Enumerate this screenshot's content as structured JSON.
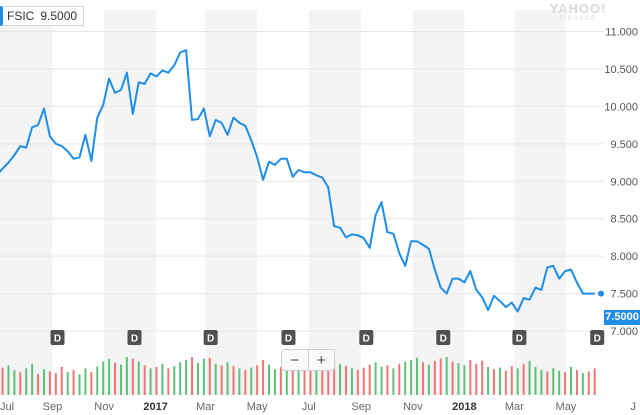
{
  "legend": {
    "symbol": "FSIC",
    "value": "9.5000"
  },
  "watermark": {
    "line1": "YAHOO!",
    "line2": "FINANCE"
  },
  "zoom": {
    "minus": "−",
    "plus": "+"
  },
  "last_price_label": "7.5000",
  "colors": {
    "price_line": "#1e8ee8",
    "volume_up": "#5cbf7a",
    "volume_down": "#f27575",
    "band": "#f4f4f4",
    "dividend_marker": "#505050"
  },
  "chart_data": {
    "type": "line",
    "y_axis": {
      "min": 6.6,
      "max": 11.1,
      "ticks": [
        "11.000",
        "10.500",
        "10.000",
        "9.500",
        "9.000",
        "8.500",
        "8.000",
        "7.500",
        "7.000"
      ]
    },
    "x_axis": {
      "range": [
        "2016-07-01",
        "2018-06-15"
      ],
      "ticks": [
        {
          "label": "Jul",
          "date": "2016-07-01"
        },
        {
          "label": "Sep",
          "date": "2016-09-01"
        },
        {
          "label": "Nov",
          "date": "2016-11-01"
        },
        {
          "label": "2017",
          "date": "2017-01-01"
        },
        {
          "label": "Mar",
          "date": "2017-03-01"
        },
        {
          "label": "May",
          "date": "2017-05-01"
        },
        {
          "label": "Jul",
          "date": "2017-07-01"
        },
        {
          "label": "Sep",
          "date": "2017-09-01"
        },
        {
          "label": "Nov",
          "date": "2017-11-01"
        },
        {
          "label": "2018",
          "date": "2018-01-01"
        },
        {
          "label": "Mar",
          "date": "2018-03-01"
        },
        {
          "label": "May",
          "date": "2018-05-01"
        },
        {
          "label": "J",
          "date": "2018-06-15"
        }
      ],
      "bands": [
        [
          "2016-07-01",
          "2016-09-01"
        ],
        [
          "2016-11-01",
          "2017-01-01"
        ],
        [
          "2017-03-01",
          "2017-05-01"
        ],
        [
          "2017-07-01",
          "2017-09-01"
        ],
        [
          "2017-11-01",
          "2018-01-01"
        ],
        [
          "2018-03-01",
          "2018-05-01"
        ]
      ]
    },
    "series": [
      {
        "x": [
          "2016-06-30",
          "2016-07-11",
          "2016-07-18",
          "2016-07-25",
          "2016-08-01",
          "2016-08-08",
          "2016-08-15",
          "2016-08-22",
          "2016-08-29",
          "2016-09-05",
          "2016-09-12",
          "2016-09-19",
          "2016-09-26",
          "2016-10-03",
          "2016-10-10",
          "2016-10-17",
          "2016-10-24",
          "2016-10-31",
          "2016-11-07",
          "2016-11-14",
          "2016-11-21",
          "2016-11-28",
          "2016-12-05",
          "2016-12-12",
          "2016-12-19",
          "2016-12-26",
          "2017-01-02",
          "2017-01-09",
          "2017-01-16",
          "2017-01-23",
          "2017-01-30",
          "2017-02-06",
          "2017-02-13",
          "2017-02-20",
          "2017-02-27",
          "2017-03-06",
          "2017-03-13",
          "2017-03-20",
          "2017-03-27",
          "2017-04-03",
          "2017-04-10",
          "2017-04-17",
          "2017-04-24",
          "2017-05-01",
          "2017-05-08",
          "2017-05-15",
          "2017-05-22",
          "2017-05-29",
          "2017-06-05",
          "2017-06-12",
          "2017-06-19",
          "2017-06-26",
          "2017-07-03",
          "2017-07-10",
          "2017-07-17",
          "2017-07-24",
          "2017-07-31",
          "2017-08-07",
          "2017-08-14",
          "2017-08-21",
          "2017-08-28",
          "2017-09-04",
          "2017-09-11",
          "2017-09-18",
          "2017-09-25",
          "2017-10-02",
          "2017-10-09",
          "2017-10-16",
          "2017-10-23",
          "2017-10-30",
          "2017-11-06",
          "2017-11-13",
          "2017-11-20",
          "2017-11-27",
          "2017-12-04",
          "2017-12-11",
          "2017-12-18",
          "2017-12-25",
          "2018-01-01",
          "2018-01-08",
          "2018-01-15",
          "2018-01-22",
          "2018-01-29",
          "2018-02-05",
          "2018-02-12",
          "2018-02-19",
          "2018-02-26",
          "2018-03-05",
          "2018-03-12",
          "2018-03-19",
          "2018-03-26",
          "2018-04-02",
          "2018-04-09",
          "2018-04-16",
          "2018-04-23",
          "2018-04-30",
          "2018-05-07",
          "2018-05-14",
          "2018-05-21",
          "2018-05-28",
          "2018-06-04"
        ],
        "values": [
          9.12,
          9.25,
          9.35,
          9.47,
          9.45,
          9.72,
          9.75,
          9.97,
          9.6,
          9.5,
          9.47,
          9.4,
          9.3,
          9.32,
          9.62,
          9.27,
          9.85,
          10.02,
          10.37,
          10.18,
          10.22,
          10.45,
          9.9,
          10.32,
          10.3,
          10.44,
          10.4,
          10.48,
          10.45,
          10.55,
          10.72,
          10.75,
          9.82,
          9.83,
          9.97,
          9.6,
          9.82,
          9.78,
          9.62,
          9.85,
          9.78,
          9.74,
          9.55,
          9.32,
          9.02,
          9.26,
          9.22,
          9.3,
          9.3,
          9.06,
          9.15,
          9.12,
          9.12,
          9.08,
          9.05,
          8.92,
          8.4,
          8.38,
          8.25,
          8.29,
          8.28,
          8.24,
          8.11,
          8.55,
          8.72,
          8.32,
          8.3,
          8.04,
          7.87,
          8.2,
          8.2,
          8.15,
          8.1,
          7.82,
          7.58,
          7.5,
          7.7,
          7.7,
          7.65,
          7.8,
          7.55,
          7.45,
          7.28,
          7.47,
          7.4,
          7.32,
          7.38,
          7.26,
          7.44,
          7.42,
          7.58,
          7.55,
          7.85,
          7.87,
          7.7,
          7.8,
          7.82,
          7.65,
          7.5,
          7.5,
          7.5
        ]
      }
    ],
    "volume": [
      {
        "x": "2016-07-04",
        "dir": "down",
        "rel": 0.72
      },
      {
        "x": "2016-07-11",
        "dir": "up",
        "rel": 0.78
      },
      {
        "x": "2016-07-18",
        "dir": "up",
        "rel": 0.65
      },
      {
        "x": "2016-07-25",
        "dir": "down",
        "rel": 0.6
      },
      {
        "x": "2016-08-01",
        "dir": "up",
        "rel": 0.7
      },
      {
        "x": "2016-08-08",
        "dir": "up",
        "rel": 0.82
      },
      {
        "x": "2016-08-15",
        "dir": "down",
        "rel": 0.55
      },
      {
        "x": "2016-08-22",
        "dir": "up",
        "rel": 0.68
      },
      {
        "x": "2016-08-29",
        "dir": "down",
        "rel": 0.62
      },
      {
        "x": "2016-09-05",
        "dir": "down",
        "rel": 0.58
      },
      {
        "x": "2016-09-12",
        "dir": "down",
        "rel": 0.74
      },
      {
        "x": "2016-09-19",
        "dir": "up",
        "rel": 0.6
      },
      {
        "x": "2016-09-26",
        "dir": "down",
        "rel": 0.66
      },
      {
        "x": "2016-10-03",
        "dir": "up",
        "rel": 0.54
      },
      {
        "x": "2016-10-10",
        "dir": "up",
        "rel": 0.7
      },
      {
        "x": "2016-10-17",
        "dir": "down",
        "rel": 0.6
      },
      {
        "x": "2016-10-24",
        "dir": "up",
        "rel": 0.75
      },
      {
        "x": "2016-10-31",
        "dir": "up",
        "rel": 0.88
      },
      {
        "x": "2016-11-07",
        "dir": "up",
        "rel": 0.95
      },
      {
        "x": "2016-11-14",
        "dir": "down",
        "rel": 0.85
      },
      {
        "x": "2016-11-21",
        "dir": "up",
        "rel": 0.8
      },
      {
        "x": "2016-11-28",
        "dir": "up",
        "rel": 1.0
      },
      {
        "x": "2016-12-05",
        "dir": "down",
        "rel": 0.96
      },
      {
        "x": "2016-12-12",
        "dir": "up",
        "rel": 0.88
      },
      {
        "x": "2016-12-19",
        "dir": "down",
        "rel": 0.78
      },
      {
        "x": "2016-12-26",
        "dir": "up",
        "rel": 0.7
      },
      {
        "x": "2017-01-02",
        "dir": "down",
        "rel": 0.74
      },
      {
        "x": "2017-01-09",
        "dir": "up",
        "rel": 0.82
      },
      {
        "x": "2017-01-16",
        "dir": "down",
        "rel": 0.7
      },
      {
        "x": "2017-01-23",
        "dir": "up",
        "rel": 0.76
      },
      {
        "x": "2017-01-30",
        "dir": "up",
        "rel": 0.86
      },
      {
        "x": "2017-02-06",
        "dir": "up",
        "rel": 0.92
      },
      {
        "x": "2017-02-13",
        "dir": "down",
        "rel": 1.0
      },
      {
        "x": "2017-02-20",
        "dir": "up",
        "rel": 0.84
      },
      {
        "x": "2017-02-27",
        "dir": "up",
        "rel": 0.96
      },
      {
        "x": "2017-03-06",
        "dir": "down",
        "rel": 0.98
      },
      {
        "x": "2017-03-13",
        "dir": "up",
        "rel": 0.82
      },
      {
        "x": "2017-03-20",
        "dir": "down",
        "rel": 0.78
      },
      {
        "x": "2017-03-27",
        "dir": "up",
        "rel": 0.86
      },
      {
        "x": "2017-04-03",
        "dir": "down",
        "rel": 0.76
      },
      {
        "x": "2017-04-10",
        "dir": "up",
        "rel": 0.7
      },
      {
        "x": "2017-04-17",
        "dir": "down",
        "rel": 0.66
      },
      {
        "x": "2017-04-24",
        "dir": "up",
        "rel": 0.72
      },
      {
        "x": "2017-05-01",
        "dir": "down",
        "rel": 0.78
      },
      {
        "x": "2017-05-08",
        "dir": "down",
        "rel": 0.92
      },
      {
        "x": "2017-05-15",
        "dir": "up",
        "rel": 0.8
      },
      {
        "x": "2017-05-22",
        "dir": "up",
        "rel": 0.68
      },
      {
        "x": "2017-05-29",
        "dir": "down",
        "rel": 0.74
      },
      {
        "x": "2017-06-05",
        "dir": "up",
        "rel": 0.7
      },
      {
        "x": "2017-06-12",
        "dir": "down",
        "rel": 0.8
      },
      {
        "x": "2017-06-19",
        "dir": "up",
        "rel": 0.66
      },
      {
        "x": "2017-06-26",
        "dir": "down",
        "rel": 0.72
      },
      {
        "x": "2017-07-03",
        "dir": "down",
        "rel": 0.68
      },
      {
        "x": "2017-07-10",
        "dir": "up",
        "rel": 0.74
      },
      {
        "x": "2017-07-17",
        "dir": "down",
        "rel": 0.7
      },
      {
        "x": "2017-07-24",
        "dir": "down",
        "rel": 0.78
      },
      {
        "x": "2017-07-31",
        "dir": "down",
        "rel": 0.9
      },
      {
        "x": "2017-08-07",
        "dir": "up",
        "rel": 0.82
      },
      {
        "x": "2017-08-14",
        "dir": "down",
        "rel": 0.76
      },
      {
        "x": "2017-08-21",
        "dir": "up",
        "rel": 0.7
      },
      {
        "x": "2017-08-28",
        "dir": "down",
        "rel": 0.66
      },
      {
        "x": "2017-09-04",
        "dir": "down",
        "rel": 0.72
      },
      {
        "x": "2017-09-11",
        "dir": "down",
        "rel": 0.8
      },
      {
        "x": "2017-09-18",
        "dir": "up",
        "rel": 0.86
      },
      {
        "x": "2017-09-25",
        "dir": "up",
        "rel": 0.74
      },
      {
        "x": "2017-10-02",
        "dir": "down",
        "rel": 0.78
      },
      {
        "x": "2017-10-09",
        "dir": "up",
        "rel": 0.7
      },
      {
        "x": "2017-10-16",
        "dir": "down",
        "rel": 0.82
      },
      {
        "x": "2017-10-23",
        "dir": "up",
        "rel": 0.88
      },
      {
        "x": "2017-10-30",
        "dir": "up",
        "rel": 0.92
      },
      {
        "x": "2017-11-06",
        "dir": "up",
        "rel": 0.98
      },
      {
        "x": "2017-11-13",
        "dir": "down",
        "rel": 0.86
      },
      {
        "x": "2017-11-20",
        "dir": "up",
        "rel": 0.8
      },
      {
        "x": "2017-11-27",
        "dir": "down",
        "rel": 0.9
      },
      {
        "x": "2017-12-04",
        "dir": "down",
        "rel": 0.96
      },
      {
        "x": "2017-12-11",
        "dir": "up",
        "rel": 1.0
      },
      {
        "x": "2017-12-18",
        "dir": "down",
        "rel": 0.88
      },
      {
        "x": "2017-12-25",
        "dir": "up",
        "rel": 0.84
      },
      {
        "x": "2018-01-01",
        "dir": "up",
        "rel": 0.78
      },
      {
        "x": "2018-01-08",
        "dir": "down",
        "rel": 0.92
      },
      {
        "x": "2018-01-15",
        "dir": "down",
        "rel": 0.82
      },
      {
        "x": "2018-01-22",
        "dir": "down",
        "rel": 0.9
      },
      {
        "x": "2018-01-29",
        "dir": "up",
        "rel": 0.74
      },
      {
        "x": "2018-02-05",
        "dir": "down",
        "rel": 0.68
      },
      {
        "x": "2018-02-12",
        "dir": "up",
        "rel": 0.72
      },
      {
        "x": "2018-02-19",
        "dir": "down",
        "rel": 0.64
      },
      {
        "x": "2018-02-26",
        "dir": "down",
        "rel": 0.76
      },
      {
        "x": "2018-03-05",
        "dir": "up",
        "rel": 0.7
      },
      {
        "x": "2018-03-12",
        "dir": "down",
        "rel": 0.82
      },
      {
        "x": "2018-03-19",
        "dir": "up",
        "rel": 0.9
      },
      {
        "x": "2018-03-26",
        "dir": "up",
        "rel": 0.74
      },
      {
        "x": "2018-04-02",
        "dir": "up",
        "rel": 0.66
      },
      {
        "x": "2018-04-09",
        "dir": "down",
        "rel": 0.62
      },
      {
        "x": "2018-04-16",
        "dir": "up",
        "rel": 0.7
      },
      {
        "x": "2018-04-23",
        "dir": "up",
        "rel": 0.64
      },
      {
        "x": "2018-04-30",
        "dir": "down",
        "rel": 0.6
      },
      {
        "x": "2018-05-07",
        "dir": "up",
        "rel": 0.74
      },
      {
        "x": "2018-05-14",
        "dir": "down",
        "rel": 0.66
      },
      {
        "x": "2018-05-21",
        "dir": "up",
        "rel": 0.58
      },
      {
        "x": "2018-05-28",
        "dir": "down",
        "rel": 0.62
      },
      {
        "x": "2018-06-04",
        "dir": "down",
        "rel": 0.7
      }
    ],
    "dividends": [
      "2016-09-07",
      "2016-12-07",
      "2017-03-07",
      "2017-06-07",
      "2017-09-07",
      "2017-12-07",
      "2018-03-07",
      "2018-06-07"
    ],
    "dividend_marker_label": "D",
    "grid": "horizontal",
    "legend_position": "top-left",
    "last_value": 7.5
  }
}
